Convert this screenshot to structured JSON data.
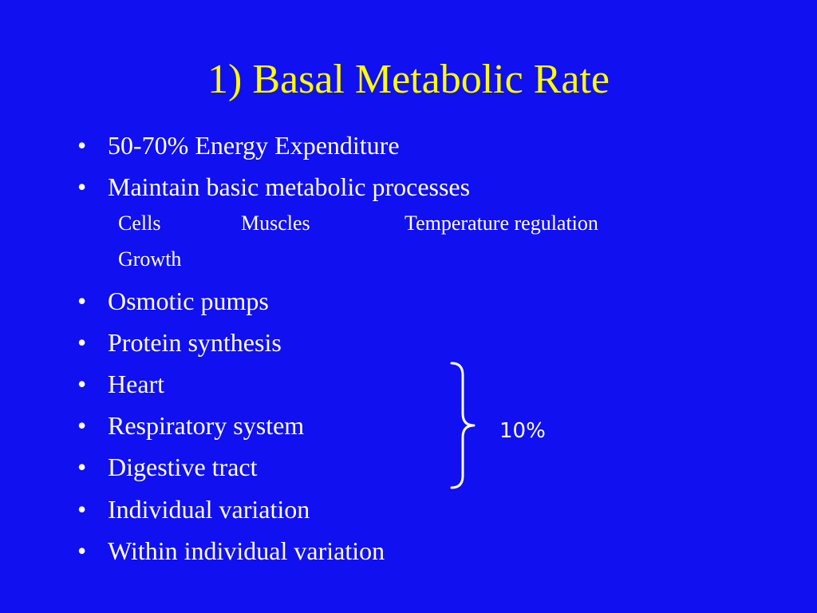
{
  "colors": {
    "background": "#1010f0",
    "title": "#ffff00",
    "text": "#ffffff"
  },
  "slide": {
    "title": "1) Basal Metabolic Rate",
    "bullet_glyph": "•",
    "bullets_top": [
      "50-70% Energy Expenditure",
      "Maintain basic metabolic processes"
    ],
    "subitems": [
      "Cells",
      "Muscles",
      "Temperature regulation",
      "Growth"
    ],
    "bullets_bottom": [
      "Osmotic pumps",
      "Protein synthesis",
      "Heart",
      "Respiratory system",
      "Digestive tract",
      "Individual variation",
      "Within individual variation"
    ],
    "brace_label": "10%"
  }
}
